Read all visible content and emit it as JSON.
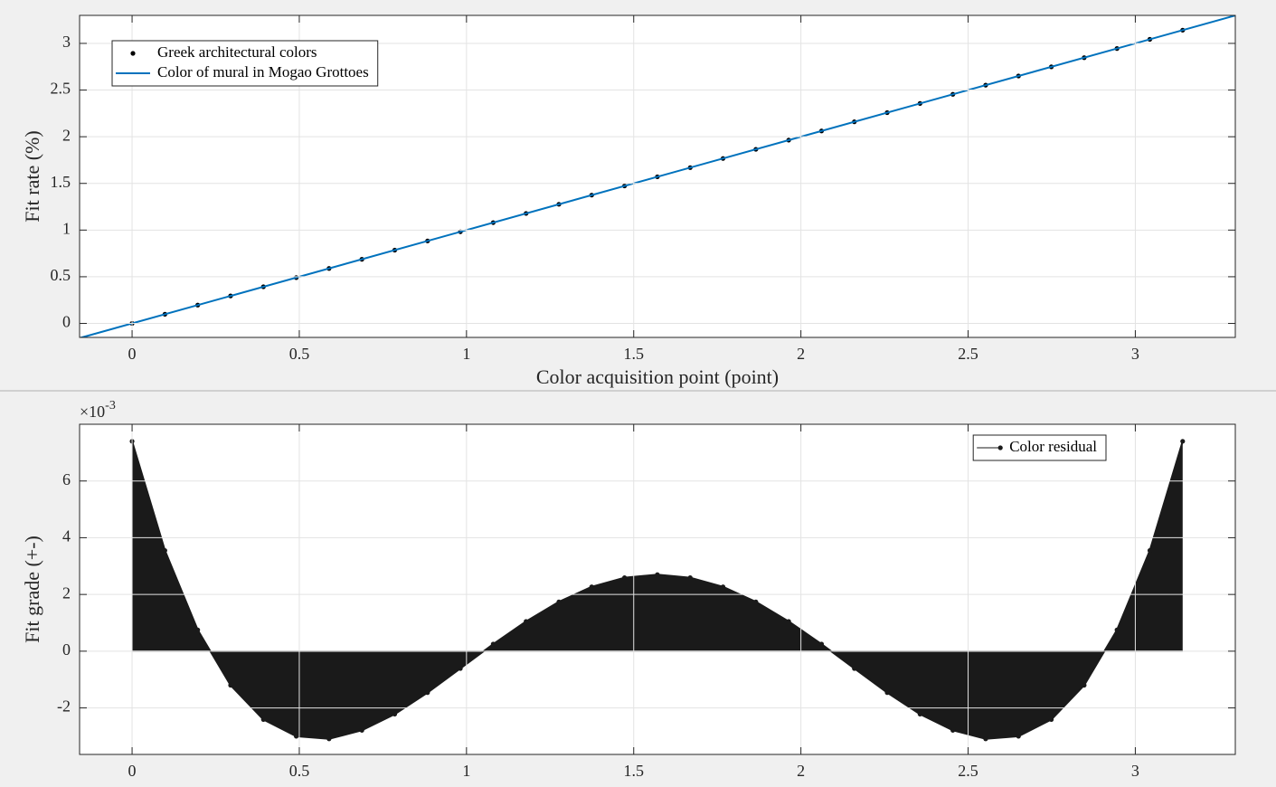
{
  "chart_data": [
    {
      "type": "line",
      "xlabel": "Color acquisition point (point)",
      "ylabel": "Fit rate (%)",
      "xlim": [
        -0.157,
        3.299
      ],
      "ylim": [
        -0.15,
        3.3
      ],
      "xticks": [
        0,
        0.5,
        1,
        1.5,
        2,
        2.5,
        3
      ],
      "yticks": [
        0,
        0.5,
        1,
        1.5,
        2,
        2.5,
        3
      ],
      "grid": true,
      "legend": "northwest",
      "series": [
        {
          "name": "Greek architectural colors",
          "color": "#000000",
          "marker": "dot",
          "x": [
            0,
            0.0982,
            0.1963,
            0.2945,
            0.3927,
            0.4909,
            0.589,
            0.6872,
            0.7854,
            0.8836,
            0.9817,
            1.0799,
            1.1781,
            1.2763,
            1.3744,
            1.4726,
            1.5708,
            1.669,
            1.7671,
            1.8653,
            1.9635,
            2.0617,
            2.1598,
            2.258,
            2.3562,
            2.4544,
            2.5525,
            2.6507,
            2.7489,
            2.8471,
            2.9452,
            3.0434,
            3.1416
          ],
          "values": [
            0,
            0.0982,
            0.1963,
            0.2945,
            0.3927,
            0.4909,
            0.589,
            0.6872,
            0.7854,
            0.8836,
            0.9817,
            1.0799,
            1.1781,
            1.2763,
            1.3744,
            1.4726,
            1.5708,
            1.669,
            1.7671,
            1.8653,
            1.9635,
            2.0617,
            2.1598,
            2.258,
            2.3562,
            2.4544,
            2.5525,
            2.6507,
            2.7489,
            2.8471,
            2.9452,
            3.0434,
            3.1416
          ]
        },
        {
          "name": "Color of mural in Mogao Grottoes",
          "color": "#0072bd",
          "line": "solid",
          "x": [
            -0.157,
            3.299
          ],
          "values": [
            -0.157,
            3.299
          ]
        }
      ]
    },
    {
      "type": "stem",
      "ylabel": "Fit grade (+-)",
      "y_multiplier": {
        "base": "×10",
        "power": "-3"
      },
      "xlim": [
        -0.157,
        3.299
      ],
      "ylim": [
        -3.64,
        8.0
      ],
      "xticks": [
        0,
        0.5,
        1,
        1.5,
        2,
        2.5,
        3
      ],
      "yticks": [
        -2,
        0,
        2,
        4,
        6
      ],
      "grid": true,
      "legend": "northeast",
      "series": [
        {
          "name": "Color residual",
          "color": "#1a1a1a",
          "marker": "dot",
          "line": "solid",
          "filled": true,
          "x": [
            0,
            0.0982,
            0.1963,
            0.2945,
            0.3927,
            0.4909,
            0.589,
            0.6872,
            0.7854,
            0.8836,
            0.9817,
            1.0799,
            1.1781,
            1.2763,
            1.3744,
            1.4726,
            1.5708,
            1.669,
            1.7671,
            1.8653,
            1.9635,
            2.0617,
            2.1598,
            2.258,
            2.3562,
            2.4544,
            2.5525,
            2.6507,
            2.7489,
            2.8471,
            2.9452,
            3.0434,
            3.1416
          ],
          "values": [
            7.4,
            3.55,
            0.75,
            -1.2,
            -2.41,
            -3.0,
            -3.09,
            -2.79,
            -2.22,
            -1.46,
            -0.61,
            0.25,
            1.05,
            1.74,
            2.27,
            2.59,
            2.7,
            2.59,
            2.27,
            1.74,
            1.05,
            0.25,
            -0.61,
            -1.46,
            -2.22,
            -2.79,
            -3.09,
            -3.0,
            -2.41,
            -1.2,
            0.75,
            3.55,
            7.4
          ]
        }
      ]
    }
  ]
}
